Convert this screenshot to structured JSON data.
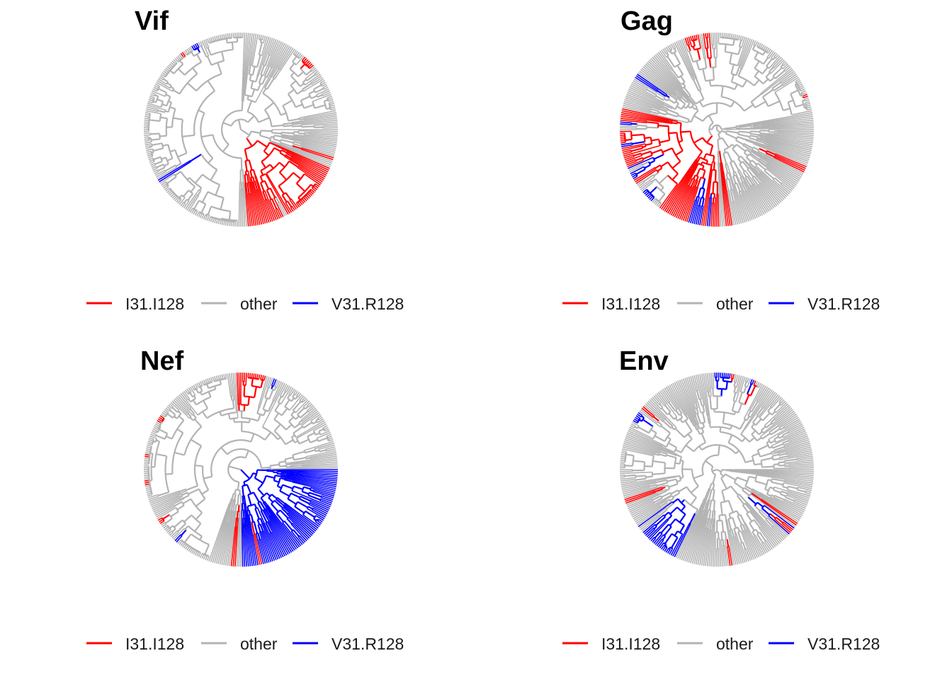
{
  "figure": {
    "colors": {
      "I31.I128": "#ff0000",
      "other": "#b3b3b3",
      "V31.R128": "#0000ff"
    },
    "panels": [
      {
        "id": "vif",
        "title": "Vif",
        "legend": [
          {
            "label": "I31.I128",
            "color": "#ff0000"
          },
          {
            "label": "other",
            "color": "#b3b3b3"
          },
          {
            "label": "V31.R128",
            "color": "#0000ff"
          }
        ]
      },
      {
        "id": "gag",
        "title": "Gag",
        "legend": [
          {
            "label": "I31.I128",
            "color": "#ff0000"
          },
          {
            "label": "other",
            "color": "#b3b3b3"
          },
          {
            "label": "V31.R128",
            "color": "#0000ff"
          }
        ]
      },
      {
        "id": "nef",
        "title": "Nef",
        "legend": [
          {
            "label": "I31.I128",
            "color": "#ff0000"
          },
          {
            "label": "other",
            "color": "#b3b3b3"
          },
          {
            "label": "V31.R128",
            "color": "#0000ff"
          }
        ]
      },
      {
        "id": "env",
        "title": "Env",
        "legend": [
          {
            "label": "I31.I128",
            "color": "#ff0000"
          },
          {
            "label": "other",
            "color": "#b3b3b3"
          },
          {
            "label": "V31.R128",
            "color": "#0000ff"
          }
        ]
      }
    ]
  }
}
